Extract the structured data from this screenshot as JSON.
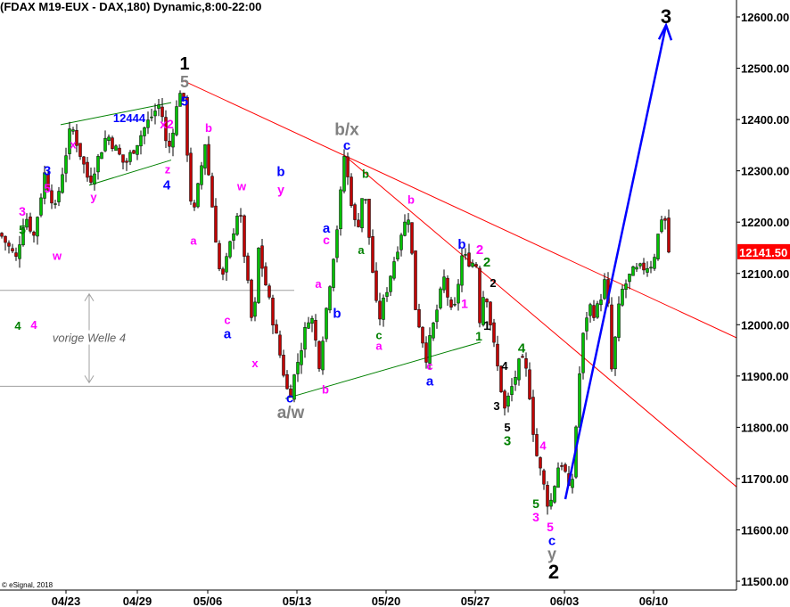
{
  "header": {
    "title": "(FDAX M19-EUX - DAX,180) Dynamic,8:00-22:00"
  },
  "footer": {
    "copyright": "© eSignal, 2018"
  },
  "chart_data": {
    "type": "candlestick",
    "title": "(FDAX M19-EUX - DAX,180) Dynamic,8:00-22:00",
    "xlabel": "",
    "ylabel": "",
    "ylim": [
      11480,
      12640
    ],
    "bars_total": 206,
    "y_ticks": [
      12600,
      12500,
      12400,
      12300,
      12200,
      12100,
      12000,
      11900,
      11800,
      11700,
      11600,
      11500
    ],
    "y_tick_labels": [
      "12600.00",
      "12500.00",
      "12400.00",
      "12300.00",
      "12200.00",
      "12100.00",
      "12000.00",
      "11900.00",
      "11800.00",
      "11700.00",
      "11600.00",
      "11500.00"
    ],
    "x_ticks": [
      {
        "bar": 18,
        "label": "04/23"
      },
      {
        "bar": 38,
        "label": "04/29"
      },
      {
        "bar": 57.75,
        "label": "05/06"
      },
      {
        "bar": 82.75,
        "label": "05/13"
      },
      {
        "bar": 107.75,
        "label": "05/20"
      },
      {
        "bar": 132.75,
        "label": "05/27"
      },
      {
        "bar": 157.75,
        "label": "06/03"
      },
      {
        "bar": 182.75,
        "label": "06/10"
      }
    ],
    "last_price": {
      "value": 12141.5,
      "label": "12141.50",
      "color": "#ff0000"
    },
    "price_path": [
      [
        0,
        12178
      ],
      [
        4.5,
        12129
      ],
      [
        7,
        12216
      ],
      [
        9.5,
        12173
      ],
      [
        12.5,
        12294
      ],
      [
        15.5,
        12225
      ],
      [
        20,
        12390
      ],
      [
        25,
        12277
      ],
      [
        30,
        12372
      ],
      [
        35,
        12311
      ],
      [
        41,
        12390
      ],
      [
        45,
        12433
      ],
      [
        47,
        12329
      ],
      [
        51,
        12477
      ],
      [
        54,
        12199
      ],
      [
        57.5,
        12355
      ],
      [
        62,
        12077
      ],
      [
        67,
        12233
      ],
      [
        71,
        11981
      ],
      [
        72.5,
        12147
      ],
      [
        81,
        11856
      ],
      [
        87,
        12030
      ],
      [
        89.5,
        11926
      ],
      [
        95,
        12216
      ],
      [
        96.5,
        12329
      ],
      [
        100,
        12176
      ],
      [
        102,
        12273
      ],
      [
        106,
        12002
      ],
      [
        112.5,
        12181
      ],
      [
        115,
        12221
      ],
      [
        116,
        12050
      ],
      [
        119.5,
        11938
      ],
      [
        124.5,
        12089
      ],
      [
        127,
        12007
      ],
      [
        129.5,
        12133
      ],
      [
        133.5,
        12117
      ],
      [
        134.5,
        12012
      ],
      [
        136,
        12080
      ],
      [
        138,
        11978
      ],
      [
        141.5,
        11834
      ],
      [
        146,
        11933
      ],
      [
        148,
        11900
      ],
      [
        150,
        11760
      ],
      [
        152,
        11700
      ],
      [
        154,
        11640
      ],
      [
        157,
        11740
      ],
      [
        159,
        11700
      ],
      [
        160,
        11650
      ],
      [
        163,
        11955
      ],
      [
        165,
        12040
      ],
      [
        167,
        12020
      ],
      [
        170,
        12094
      ],
      [
        171.5,
        11912
      ],
      [
        174,
        12060
      ],
      [
        177,
        12100
      ],
      [
        183,
        12120
      ],
      [
        186,
        12228
      ],
      [
        187,
        12180
      ],
      [
        187.5,
        12141.5
      ]
    ],
    "colors": {
      "up": "#00c000",
      "down": "#c00000",
      "wick": "#000000"
    },
    "trendlines": [
      {
        "name": "red-trendline-upper",
        "color": "#ff0000",
        "from": [
          51,
          12477
        ],
        "to": [
          206.5,
          11973
        ]
      },
      {
        "name": "red-trendline-lower",
        "color": "#ff0000",
        "from": [
          96.75,
          12329
        ],
        "to": [
          206.5,
          11681
        ]
      },
      {
        "name": "green-wedge-upper",
        "color": "#008000",
        "from": [
          17,
          12390
        ],
        "to": [
          47.5,
          12433
        ]
      },
      {
        "name": "green-wedge-lower",
        "color": "#008000",
        "from": [
          25,
          12272
        ],
        "to": [
          47.5,
          12321
        ]
      },
      {
        "name": "green-triangle-lower",
        "color": "#008000",
        "from": [
          80,
          11856
        ],
        "to": [
          134.25,
          11966
        ]
      },
      {
        "name": "grey-level-upper",
        "color": "#a0a0a0",
        "from": [
          0,
          12067
        ],
        "to": [
          82,
          12067
        ]
      },
      {
        "name": "grey-level-lower",
        "color": "#a0a0a0",
        "from": [
          0,
          11880
        ],
        "to": [
          82,
          11880
        ]
      }
    ],
    "arrow": {
      "color": "#0000ff",
      "from": [
        158,
        11660
      ],
      "to": [
        186.25,
        12584
      ]
    },
    "range_note": {
      "text": "vorige Welle 4",
      "bar": 24.5,
      "from_price": 12067,
      "to_price": 11880
    },
    "annotations": [
      {
        "t": "1",
        "b": 51.25,
        "p": 12510,
        "c": "#000000",
        "s": 20
      },
      {
        "t": "5",
        "b": 51.25,
        "p": 12474,
        "c": "#808080",
        "s": 18
      },
      {
        "t": "5",
        "b": 51.25,
        "p": 12436,
        "c": "#0000ff",
        "s": 15
      },
      {
        "t": "12444",
        "b": 35.75,
        "p": 12403,
        "c": "#0000ff",
        "s": 13
      },
      {
        "t": "x2",
        "b": 46.25,
        "p": 12391,
        "c": "#ff00ff",
        "s": 14
      },
      {
        "t": "x",
        "b": 20,
        "p": 12352,
        "c": "#ff00ff",
        "s": 13
      },
      {
        "t": "3",
        "b": 12.75,
        "p": 12301,
        "c": "#0000ff",
        "s": 15
      },
      {
        "t": "5",
        "b": 12.75,
        "p": 12266,
        "c": "#ff00ff",
        "s": 14
      },
      {
        "t": "3",
        "b": 5.75,
        "p": 12221,
        "c": "#ff00ff",
        "s": 14
      },
      {
        "t": "5",
        "b": 5.75,
        "p": 12185,
        "c": "#008000",
        "s": 14
      },
      {
        "t": "w",
        "b": 15.5,
        "p": 12134,
        "c": "#ff00ff",
        "s": 13
      },
      {
        "t": "4",
        "b": 4.5,
        "p": 11998,
        "c": "#008000",
        "s": 13
      },
      {
        "t": "4",
        "b": 9,
        "p": 12000,
        "c": "#ff00ff",
        "s": 13
      },
      {
        "t": "y",
        "b": 25.75,
        "p": 12249,
        "c": "#ff00ff",
        "s": 13
      },
      {
        "t": "z",
        "b": 46.5,
        "p": 12303,
        "c": "#ff00ff",
        "s": 13
      },
      {
        "t": "4",
        "b": 46.25,
        "p": 12273,
        "c": "#0000ff",
        "s": 15
      },
      {
        "t": "b",
        "b": 58,
        "p": 12384,
        "c": "#ff00ff",
        "s": 13
      },
      {
        "t": "w",
        "b": 67.25,
        "p": 12270,
        "c": "#ff00ff",
        "s": 13
      },
      {
        "t": "b",
        "b": 78.25,
        "p": 12299,
        "c": "#0000ff",
        "s": 15
      },
      {
        "t": "y",
        "b": 78.25,
        "p": 12264,
        "c": "#ff00ff",
        "s": 14
      },
      {
        "t": "a",
        "b": 53.75,
        "p": 12164,
        "c": "#ff00ff",
        "s": 13
      },
      {
        "t": "c",
        "b": 63.25,
        "p": 12009,
        "c": "#ff00ff",
        "s": 13
      },
      {
        "t": "a",
        "b": 63.25,
        "p": 11983,
        "c": "#0000ff",
        "s": 15
      },
      {
        "t": "x",
        "b": 71,
        "p": 11925,
        "c": "#ff00ff",
        "s": 13
      },
      {
        "t": "b/x",
        "b": 96.75,
        "p": 12381,
        "c": "#808080",
        "s": 19
      },
      {
        "t": "c",
        "b": 96.75,
        "p": 12350,
        "c": "#0000ff",
        "s": 15
      },
      {
        "t": "b",
        "b": 102,
        "p": 12294,
        "c": "#008000",
        "s": 13
      },
      {
        "t": "a",
        "b": 100.75,
        "p": 12146,
        "c": "#008000",
        "s": 13
      },
      {
        "t": "a",
        "b": 91,
        "p": 12189,
        "c": "#0000ff",
        "s": 15
      },
      {
        "t": "c",
        "b": 91,
        "p": 12165,
        "c": "#ff00ff",
        "s": 14
      },
      {
        "t": "a",
        "b": 88.75,
        "p": 12080,
        "c": "#ff00ff",
        "s": 13
      },
      {
        "t": "b",
        "b": 94,
        "p": 12023,
        "c": "#0000ff",
        "s": 15
      },
      {
        "t": "c",
        "b": 105.75,
        "p": 11980,
        "c": "#008000",
        "s": 13
      },
      {
        "t": "a",
        "b": 105.75,
        "p": 11959,
        "c": "#ff00ff",
        "s": 13
      },
      {
        "t": "b",
        "b": 114.75,
        "p": 12244,
        "c": "#ff00ff",
        "s": 13
      },
      {
        "t": "b",
        "b": 129,
        "p": 12157,
        "c": "#0000ff",
        "s": 15
      },
      {
        "t": "2",
        "b": 134,
        "p": 12147,
        "c": "#ff00ff",
        "s": 15
      },
      {
        "t": "2",
        "b": 136,
        "p": 12123,
        "c": "#008000",
        "s": 15
      },
      {
        "t": "2",
        "b": 137.75,
        "p": 12081,
        "c": "#000000",
        "s": 13
      },
      {
        "t": "1",
        "b": 129.75,
        "p": 12041,
        "c": "#ff00ff",
        "s": 14
      },
      {
        "t": "1",
        "b": 136,
        "p": 11999,
        "c": "#000000",
        "s": 14
      },
      {
        "t": "1",
        "b": 133.75,
        "p": 11978,
        "c": "#008000",
        "s": 14
      },
      {
        "t": "c",
        "b": 120,
        "p": 11920,
        "c": "#ff00ff",
        "s": 13
      },
      {
        "t": "a",
        "b": 120,
        "p": 11891,
        "c": "#0000ff",
        "s": 15
      },
      {
        "t": "c",
        "b": 80.75,
        "p": 11858,
        "c": "#0000ff",
        "s": 15
      },
      {
        "t": "a/w",
        "b": 81,
        "p": 11830,
        "c": "#808080",
        "s": 19
      },
      {
        "t": "b",
        "b": 90.75,
        "p": 11874,
        "c": "#ff00ff",
        "s": 13
      },
      {
        "t": "4",
        "b": 145.75,
        "p": 11955,
        "c": "#008000",
        "s": 15
      },
      {
        "t": "4",
        "b": 141,
        "p": 11920,
        "c": "#000000",
        "s": 13
      },
      {
        "t": "3",
        "b": 138.75,
        "p": 11842,
        "c": "#000000",
        "s": 13
      },
      {
        "t": "5",
        "b": 141.75,
        "p": 11800,
        "c": "#000000",
        "s": 13
      },
      {
        "t": "3",
        "b": 141.75,
        "p": 11774,
        "c": "#008000",
        "s": 15
      },
      {
        "t": "4",
        "b": 151.75,
        "p": 11764,
        "c": "#ff00ff",
        "s": 13
      },
      {
        "t": "5",
        "b": 149.75,
        "p": 11651,
        "c": "#008000",
        "s": 14
      },
      {
        "t": "3",
        "b": 149.75,
        "p": 11625,
        "c": "#ff00ff",
        "s": 14
      },
      {
        "t": "5",
        "b": 153.75,
        "p": 11606,
        "c": "#ff00ff",
        "s": 14
      },
      {
        "t": "c",
        "b": 154.25,
        "p": 11580,
        "c": "#0000ff",
        "s": 15
      },
      {
        "t": "y",
        "b": 154.25,
        "p": 11554,
        "c": "#808080",
        "s": 18
      },
      {
        "t": "2",
        "b": 154.75,
        "p": 11519,
        "c": "#000000",
        "s": 22
      },
      {
        "t": "3",
        "b": 186.25,
        "p": 12601,
        "c": "#000000",
        "s": 22
      }
    ]
  }
}
